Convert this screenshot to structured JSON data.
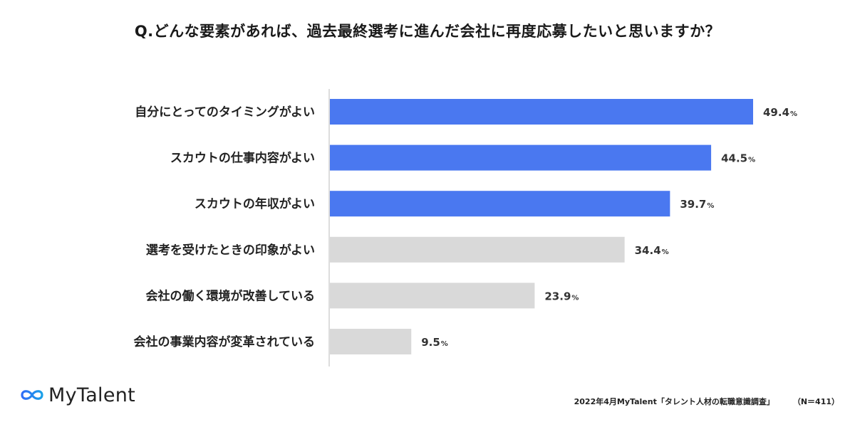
{
  "title": "Q.どんな要素があれば、過去最終選考に進んだ会社に再度応募したいと思いますか？",
  "logo": {
    "text": "MyTalent"
  },
  "footer": {
    "source": "2022年4月MyTalent「タレント人材の転職意識調査」",
    "sample": "（N＝411）"
  },
  "colors": {
    "highlight": "#4a78f0",
    "normal": "#d9d9d9",
    "axis": "#bbbbbb"
  },
  "chart_data": {
    "type": "bar",
    "orientation": "horizontal",
    "categories": [
      "自分にとってのタイミングがよい",
      "スカウトの仕事内容がよい",
      "スカウトの年収がよい",
      "選考を受けたときの印象がよい",
      "会社の働く環境が改善している",
      "会社の事業内容が変革されている"
    ],
    "values": [
      49.4,
      44.5,
      39.7,
      34.4,
      23.9,
      9.5
    ],
    "value_labels": [
      "49.4",
      "44.5",
      "39.7",
      "34.4",
      "23.9",
      "9.5"
    ],
    "unit": "%",
    "highlighted": [
      true,
      true,
      true,
      false,
      false,
      false
    ],
    "xlim": [
      0,
      49.4
    ],
    "grid": false,
    "legend": "none"
  }
}
